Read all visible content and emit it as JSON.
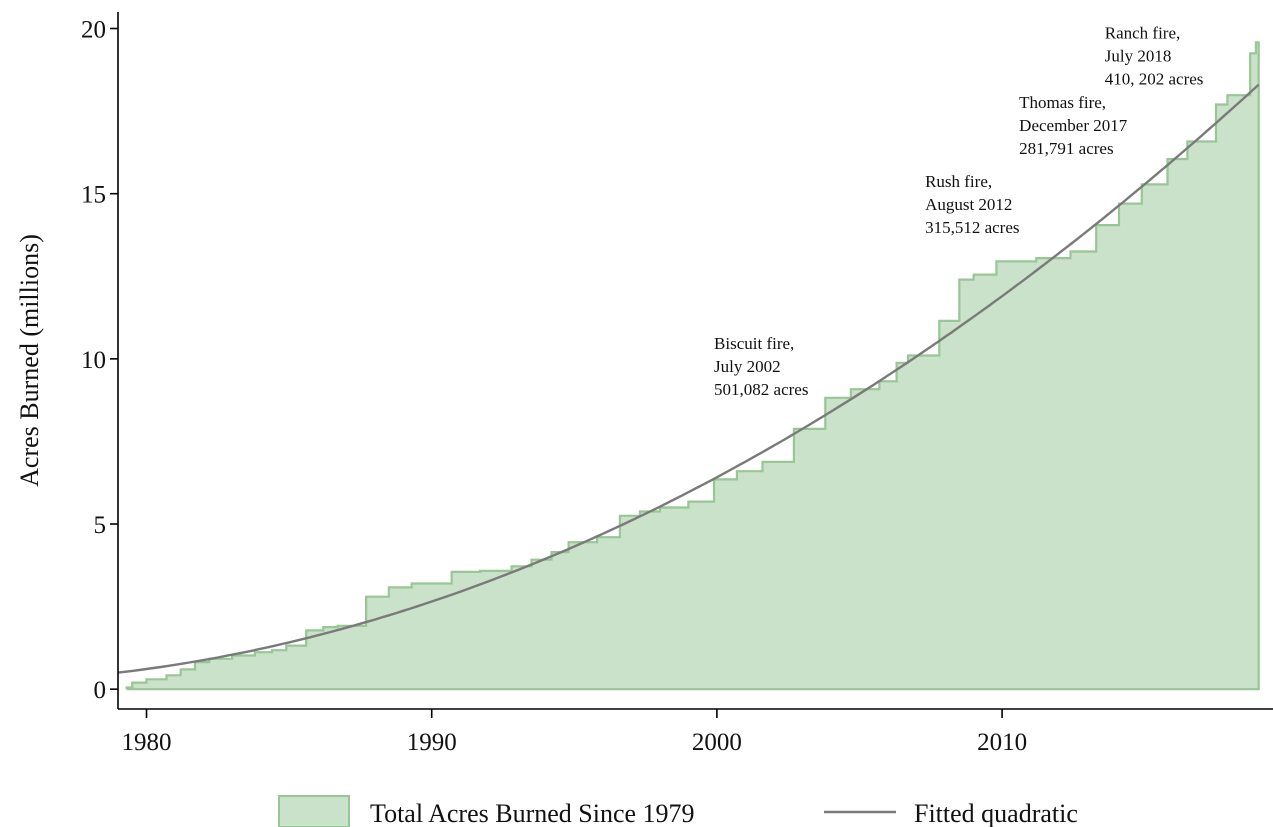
{
  "chart_data": {
    "type": "area",
    "title": "",
    "xlabel": "",
    "ylabel": "Acres Burned (millions)",
    "xlim": [
      1979,
      2019.5
    ],
    "ylim": [
      -0.6,
      20.5
    ],
    "x_ticks": [
      1980,
      1990,
      2000,
      2010
    ],
    "y_ticks": [
      0,
      5,
      10,
      15,
      20
    ],
    "grid": false,
    "legend_position": "bottom",
    "colors": {
      "area_fill": "#c9e2c9",
      "area_stroke": "#98c695",
      "fit_line": "#7a7a7a",
      "axis": "#000000"
    },
    "series": [
      {
        "name": "Total Acres Burned Since 1979",
        "kind": "step-area",
        "points": [
          [
            1979.3,
            0.05
          ],
          [
            1979.5,
            0.2
          ],
          [
            1980.0,
            0.3
          ],
          [
            1980.7,
            0.42
          ],
          [
            1981.2,
            0.6
          ],
          [
            1981.7,
            0.82
          ],
          [
            1982.2,
            0.92
          ],
          [
            1983.0,
            1.02
          ],
          [
            1983.8,
            1.12
          ],
          [
            1984.4,
            1.18
          ],
          [
            1984.9,
            1.32
          ],
          [
            1985.6,
            1.78
          ],
          [
            1986.2,
            1.88
          ],
          [
            1986.7,
            1.92
          ],
          [
            1987.7,
            2.8
          ],
          [
            1988.5,
            3.08
          ],
          [
            1989.3,
            3.2
          ],
          [
            1990.7,
            3.55
          ],
          [
            1991.7,
            3.58
          ],
          [
            1992.8,
            3.72
          ],
          [
            1993.5,
            3.92
          ],
          [
            1994.2,
            4.15
          ],
          [
            1994.8,
            4.45
          ],
          [
            1995.8,
            4.6
          ],
          [
            1996.6,
            5.25
          ],
          [
            1997.3,
            5.38
          ],
          [
            1998.0,
            5.5
          ],
          [
            1999.0,
            5.68
          ],
          [
            1999.9,
            6.35
          ],
          [
            2000.7,
            6.6
          ],
          [
            2001.6,
            6.88
          ],
          [
            2002.7,
            7.88
          ],
          [
            2003.8,
            8.82
          ],
          [
            2004.7,
            9.08
          ],
          [
            2005.7,
            9.32
          ],
          [
            2006.3,
            9.88
          ],
          [
            2006.7,
            10.1
          ],
          [
            2007.8,
            11.15
          ],
          [
            2008.5,
            12.4
          ],
          [
            2009.0,
            12.55
          ],
          [
            2009.8,
            12.95
          ],
          [
            2011.2,
            13.05
          ],
          [
            2012.4,
            13.25
          ],
          [
            2013.3,
            14.05
          ],
          [
            2014.1,
            14.7
          ],
          [
            2014.9,
            15.28
          ],
          [
            2015.8,
            16.05
          ],
          [
            2016.5,
            16.58
          ],
          [
            2017.5,
            17.7
          ],
          [
            2017.9,
            17.98
          ],
          [
            2018.7,
            19.25
          ],
          [
            2018.9,
            19.58
          ],
          [
            2019.0,
            19.58
          ]
        ]
      },
      {
        "name": "Fitted quadratic",
        "kind": "line",
        "x": [
          1979.0,
          1982.0,
          1985.0,
          1988.0,
          1991.0,
          1994.0,
          1997.0,
          2000.0,
          2003.0,
          2006.0,
          2009.0,
          2012.0,
          2015.0,
          2018.0,
          2019.0
        ],
        "values": [
          0.5,
          0.88,
          1.42,
          2.11,
          2.95,
          3.95,
          5.11,
          6.41,
          7.88,
          9.5,
          11.27,
          13.2,
          15.29,
          17.52,
          18.3
        ]
      }
    ],
    "annotations": [
      {
        "lines": [
          "Biscuit fire,",
          "July 2002",
          "501,082 acres"
        ],
        "x": 1999.9,
        "y": 10.3
      },
      {
        "lines": [
          "Rush fire,",
          "August 2012",
          "315,512 acres"
        ],
        "x": 2007.3,
        "y": 15.2
      },
      {
        "lines": [
          "Thomas fire,",
          "December 2017",
          "281,791 acres"
        ],
        "x": 2010.6,
        "y": 17.6
      },
      {
        "lines": [
          "Ranch fire,",
          "July 2018",
          "410, 202 acres"
        ],
        "x": 2013.6,
        "y": 19.7
      }
    ]
  }
}
